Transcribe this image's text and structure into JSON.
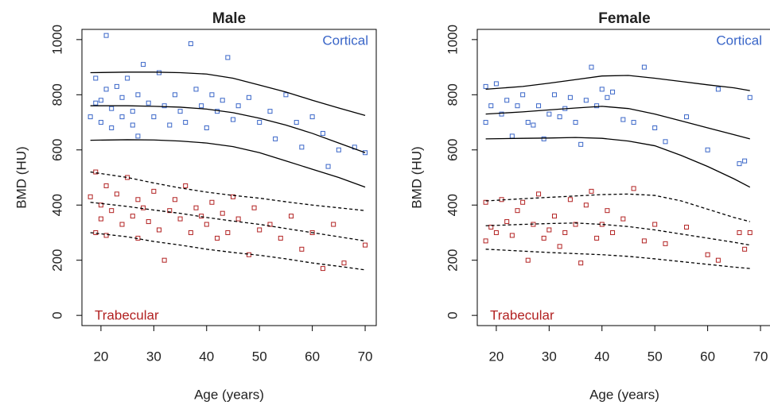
{
  "chart_data": [
    {
      "type": "scatter",
      "title": "Male",
      "xlabel": "Age (years)",
      "ylabel": "BMD (HU)",
      "xlim": [
        16.4,
        72.1
      ],
      "ylim": [
        -37,
        1037
      ],
      "xticks": [
        20,
        30,
        40,
        50,
        60,
        70
      ],
      "yticks": [
        0,
        200,
        400,
        600,
        800,
        1000
      ],
      "series": [
        {
          "name": "Cortical",
          "color": "#3a66c8",
          "label_corner": "top-right",
          "x": [
            18,
            19,
            19,
            20,
            20,
            21,
            21,
            22,
            22,
            23,
            24,
            24,
            25,
            26,
            26,
            27,
            27,
            28,
            29,
            30,
            31,
            32,
            33,
            34,
            35,
            36,
            37,
            38,
            39,
            40,
            41,
            42,
            43,
            44,
            45,
            46,
            48,
            50,
            52,
            53,
            55,
            57,
            58,
            60,
            62,
            63,
            65,
            68,
            70
          ],
          "values": [
            720,
            860,
            770,
            780,
            700,
            1015,
            820,
            750,
            680,
            830,
            790,
            720,
            860,
            740,
            690,
            800,
            650,
            910,
            770,
            720,
            880,
            760,
            690,
            800,
            740,
            700,
            985,
            820,
            760,
            680,
            800,
            740,
            780,
            935,
            710,
            760,
            790,
            700,
            740,
            640,
            800,
            700,
            610,
            720,
            660,
            540,
            600,
            610,
            590
          ]
        },
        {
          "name": "Trabecular",
          "color": "#b22222",
          "label_corner": "bottom-left",
          "x": [
            18,
            19,
            19,
            20,
            20,
            21,
            21,
            22,
            23,
            24,
            25,
            26,
            27,
            27,
            28,
            29,
            30,
            31,
            32,
            33,
            34,
            35,
            36,
            37,
            38,
            39,
            40,
            41,
            42,
            43,
            44,
            45,
            46,
            48,
            49,
            50,
            52,
            54,
            56,
            58,
            60,
            62,
            64,
            66,
            70
          ],
          "values": [
            430,
            520,
            300,
            400,
            350,
            470,
            290,
            380,
            440,
            330,
            500,
            360,
            420,
            280,
            390,
            340,
            450,
            310,
            200,
            380,
            420,
            350,
            470,
            300,
            390,
            360,
            330,
            410,
            280,
            370,
            300,
            430,
            350,
            220,
            390,
            310,
            330,
            280,
            360,
            240,
            300,
            170,
            330,
            190,
            255
          ]
        },
        {
          "type": "line",
          "color": "#000000",
          "dashed": false,
          "x": [
            18,
            25,
            30,
            35,
            40,
            45,
            50,
            55,
            60,
            65,
            70
          ],
          "values": [
            880,
            882,
            882,
            880,
            875,
            860,
            835,
            810,
            780,
            752,
            725
          ]
        },
        {
          "type": "line",
          "color": "#000000",
          "dashed": false,
          "x": [
            18,
            25,
            30,
            35,
            40,
            45,
            50,
            55,
            60,
            65,
            70
          ],
          "values": [
            760,
            760,
            758,
            755,
            748,
            735,
            715,
            690,
            660,
            625,
            590
          ]
        },
        {
          "type": "line",
          "color": "#000000",
          "dashed": false,
          "x": [
            18,
            25,
            30,
            35,
            40,
            45,
            50,
            55,
            60,
            65,
            70
          ],
          "values": [
            635,
            637,
            636,
            632,
            625,
            612,
            590,
            560,
            530,
            500,
            465
          ]
        },
        {
          "type": "line",
          "color": "#000000",
          "dashed": true,
          "x": [
            18,
            25,
            30,
            35,
            40,
            45,
            50,
            55,
            60,
            65,
            70
          ],
          "values": [
            520,
            500,
            480,
            462,
            447,
            435,
            425,
            412,
            400,
            390,
            380
          ]
        },
        {
          "type": "line",
          "color": "#000000",
          "dashed": true,
          "x": [
            18,
            25,
            30,
            35,
            40,
            45,
            50,
            55,
            60,
            65,
            70
          ],
          "values": [
            410,
            395,
            382,
            370,
            355,
            342,
            330,
            315,
            300,
            285,
            270
          ]
        },
        {
          "type": "line",
          "color": "#000000",
          "dashed": true,
          "x": [
            18,
            25,
            30,
            35,
            40,
            45,
            50,
            55,
            60,
            65,
            70
          ],
          "values": [
            300,
            285,
            268,
            255,
            240,
            228,
            218,
            205,
            190,
            178,
            165
          ]
        }
      ]
    },
    {
      "type": "scatter",
      "title": "Female",
      "xlabel": "Age (years)",
      "ylabel": "BMD (HU)",
      "xlim": [
        16.4,
        72.1
      ],
      "ylim": [
        -37,
        1037
      ],
      "xticks": [
        20,
        30,
        40,
        50,
        60,
        70
      ],
      "yticks": [
        0,
        200,
        400,
        600,
        800,
        1000
      ],
      "series": [
        {
          "name": "Cortical",
          "color": "#3a66c8",
          "label_corner": "top-right",
          "x": [
            18,
            18,
            19,
            20,
            21,
            22,
            23,
            24,
            25,
            26,
            27,
            28,
            29,
            30,
            31,
            32,
            33,
            34,
            35,
            36,
            37,
            38,
            39,
            40,
            41,
            42,
            44,
            46,
            48,
            50,
            52,
            56,
            60,
            62,
            66,
            67,
            68
          ],
          "values": [
            830,
            700,
            760,
            840,
            730,
            780,
            650,
            760,
            800,
            700,
            690,
            760,
            640,
            730,
            800,
            720,
            750,
            790,
            700,
            620,
            780,
            900,
            760,
            820,
            790,
            810,
            710,
            700,
            900,
            680,
            630,
            720,
            600,
            820,
            550,
            560,
            790
          ]
        },
        {
          "name": "Trabecular",
          "color": "#b22222",
          "label_corner": "bottom-left",
          "x": [
            18,
            18,
            19,
            20,
            21,
            22,
            23,
            24,
            25,
            26,
            27,
            28,
            29,
            30,
            31,
            32,
            33,
            34,
            35,
            36,
            37,
            38,
            39,
            40,
            41,
            42,
            44,
            46,
            48,
            50,
            52,
            56,
            60,
            62,
            66,
            67,
            68
          ],
          "values": [
            410,
            270,
            320,
            300,
            420,
            340,
            290,
            380,
            410,
            200,
            330,
            440,
            280,
            310,
            360,
            250,
            300,
            420,
            330,
            190,
            400,
            450,
            280,
            330,
            380,
            300,
            350,
            460,
            270,
            330,
            260,
            320,
            220,
            200,
            300,
            240,
            300
          ]
        },
        {
          "type": "line",
          "color": "#000000",
          "dashed": false,
          "x": [
            18,
            25,
            30,
            35,
            40,
            45,
            50,
            55,
            60,
            65,
            68
          ],
          "values": [
            820,
            830,
            842,
            855,
            868,
            870,
            860,
            848,
            836,
            825,
            815
          ]
        },
        {
          "type": "line",
          "color": "#000000",
          "dashed": false,
          "x": [
            18,
            25,
            30,
            35,
            40,
            45,
            50,
            55,
            60,
            65,
            68
          ],
          "values": [
            730,
            738,
            745,
            752,
            758,
            750,
            730,
            705,
            680,
            655,
            640
          ]
        },
        {
          "type": "line",
          "color": "#000000",
          "dashed": false,
          "x": [
            18,
            25,
            30,
            35,
            40,
            45,
            50,
            55,
            60,
            65,
            68
          ],
          "values": [
            640,
            642,
            643,
            645,
            642,
            632,
            615,
            580,
            540,
            495,
            465
          ]
        },
        {
          "type": "line",
          "color": "#000000",
          "dashed": true,
          "x": [
            18,
            25,
            30,
            35,
            40,
            45,
            50,
            55,
            60,
            65,
            68
          ],
          "values": [
            415,
            423,
            428,
            433,
            438,
            440,
            435,
            415,
            385,
            355,
            340
          ]
        },
        {
          "type": "line",
          "color": "#000000",
          "dashed": true,
          "x": [
            18,
            25,
            30,
            35,
            40,
            45,
            50,
            55,
            60,
            65,
            68
          ],
          "values": [
            325,
            330,
            333,
            335,
            330,
            322,
            310,
            295,
            280,
            265,
            255
          ]
        },
        {
          "type": "line",
          "color": "#000000",
          "dashed": true,
          "x": [
            18,
            25,
            30,
            35,
            40,
            45,
            50,
            55,
            60,
            65,
            68
          ],
          "values": [
            240,
            233,
            228,
            224,
            220,
            214,
            205,
            195,
            185,
            175,
            170
          ]
        }
      ]
    }
  ]
}
